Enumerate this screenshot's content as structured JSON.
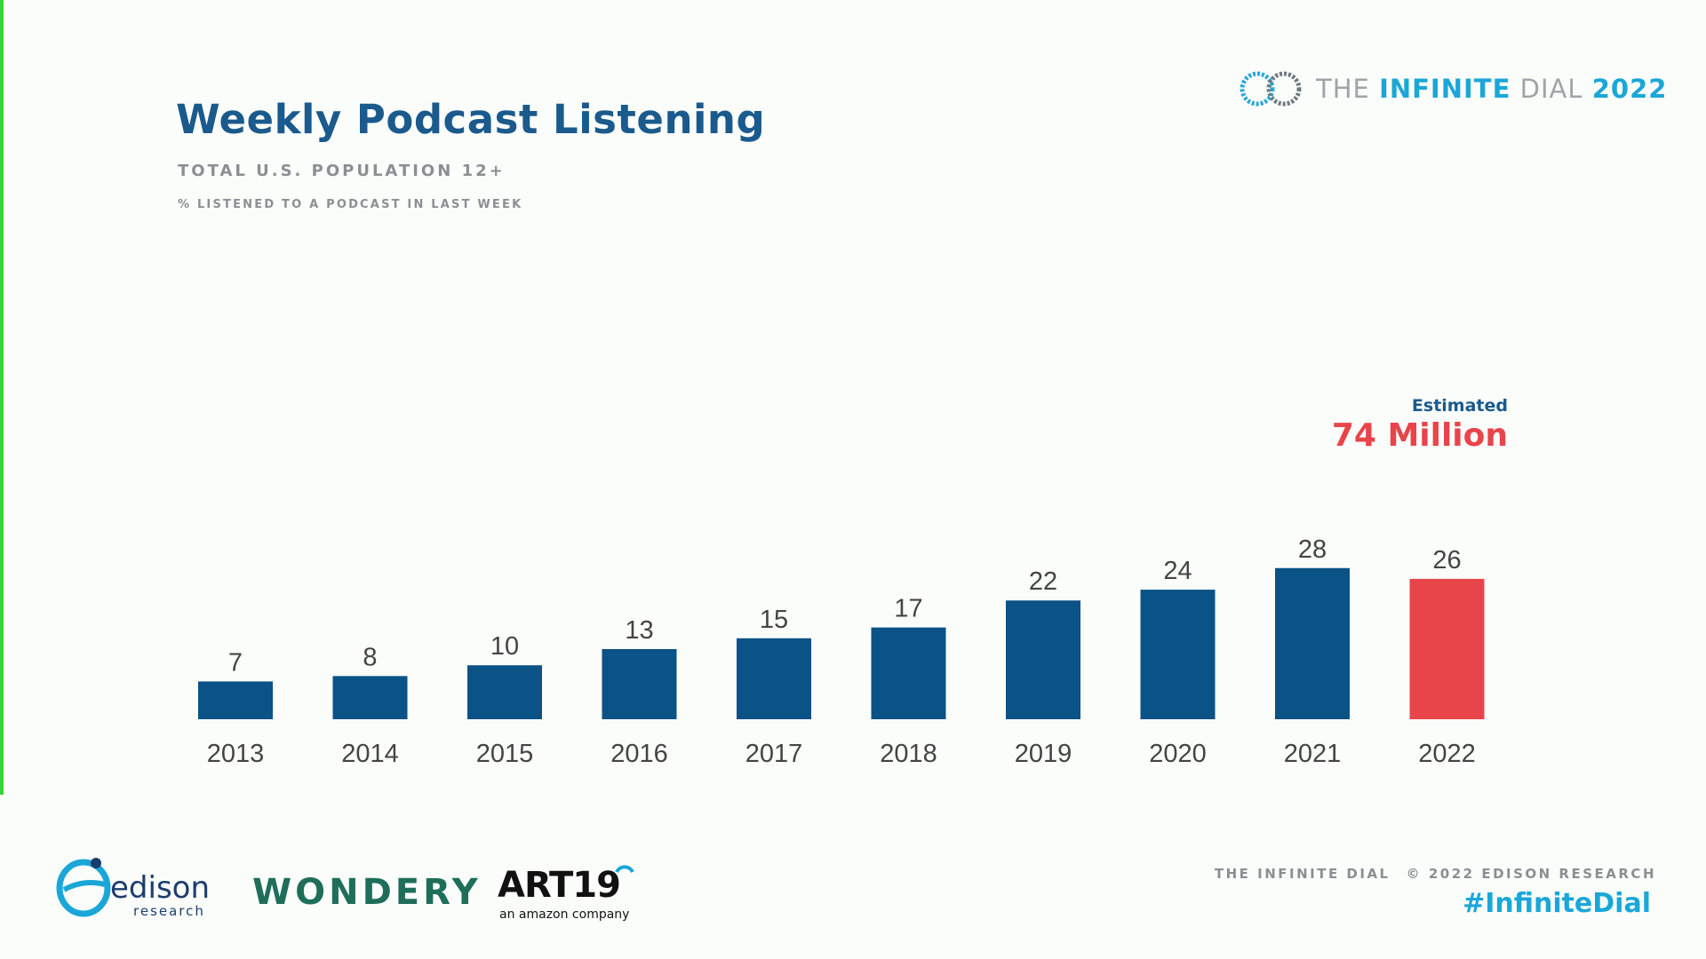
{
  "slide": {
    "title": "Weekly Podcast Listening",
    "subtitle": "TOTAL U.S. POPULATION 12+",
    "subnote": "% LISTENED TO A PODCAST IN LAST WEEK"
  },
  "brand": {
    "prefix": "THE ",
    "highlight": "INFINITE",
    "middle": " DIAL ",
    "year": "2022",
    "icon": "infinity-rings-icon"
  },
  "estimate": {
    "label": "Estimated",
    "value": "74 Million"
  },
  "footer": {
    "left": "THE INFINITE DIAL",
    "right": "© 2022 EDISON RESEARCH",
    "hashtag": "#InfiniteDial"
  },
  "logos": {
    "edison": "edison",
    "edison_sub": "research",
    "wondery": "WONDERY",
    "art19": "ART19",
    "art19_sub": "an amazon company"
  },
  "colors": {
    "bar": "#0b5286",
    "highlight_bar": "#e8454a",
    "title": "#1a5a8c",
    "accent": "#1aa7d8"
  },
  "chart_data": {
    "type": "bar",
    "categories": [
      "2013",
      "2014",
      "2015",
      "2016",
      "2017",
      "2018",
      "2019",
      "2020",
      "2021",
      "2022"
    ],
    "values": [
      7,
      8,
      10,
      13,
      15,
      17,
      22,
      24,
      28,
      26
    ],
    "highlight_index": 9,
    "data_labels": true,
    "grid": false,
    "ylim": [
      0,
      28
    ]
  }
}
